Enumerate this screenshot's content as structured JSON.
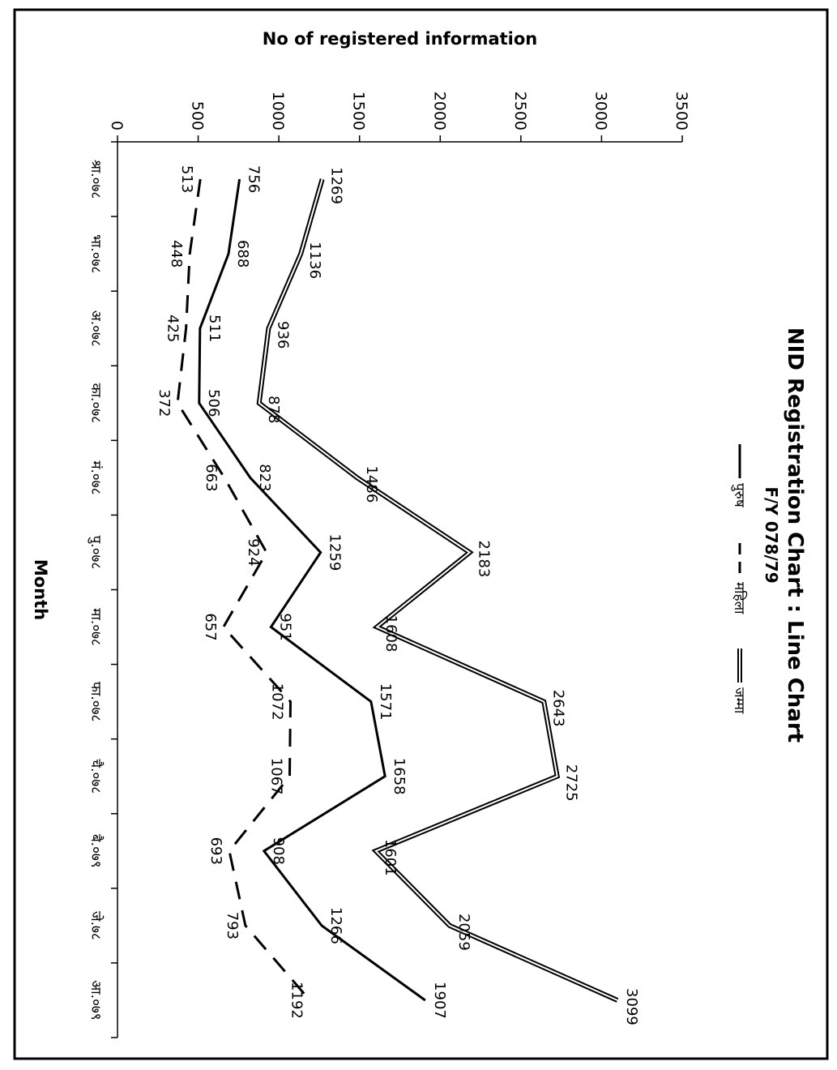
{
  "chart_data": {
    "type": "line",
    "orientation": "rotated-90-clockwise",
    "title": "NID Registration Chart : Line Chart",
    "subtitle": "F/Y 078/79",
    "xlabel": "Month",
    "ylabel": "No of registered information",
    "ylim": [
      0,
      3500
    ],
    "y_ticks": [
      "0",
      "500",
      "1000",
      "1500",
      "2000",
      "2500",
      "3000",
      "3500"
    ],
    "grid": false,
    "legend_position": "top",
    "categories": [
      "श्रा.०७८",
      "भा.०७८",
      "अ.०७८",
      "का.०७८",
      "मं.०७८",
      "पु.०७८",
      "मा.०७८",
      "फा.०७८",
      "चै.०७८",
      "बै.०७९",
      "जे.७८",
      "आ.०७९"
    ],
    "series": [
      {
        "name": "पुरुष",
        "style": "solid",
        "color": "#000000",
        "values": [
          756,
          688,
          511,
          506,
          823,
          1259,
          951,
          1571,
          1658,
          908,
          1266,
          1907
        ]
      },
      {
        "name": "महिला",
        "style": "dashed",
        "color": "#000000",
        "values": [
          513,
          448,
          425,
          372,
          663,
          924,
          657,
          1072,
          1067,
          693,
          793,
          1192
        ]
      },
      {
        "name": "जम्मा",
        "style": "double",
        "color": "#000000",
        "values": [
          1269,
          1136,
          936,
          878,
          1486,
          2183,
          1608,
          2643,
          2725,
          1601,
          2059,
          3099
        ]
      }
    ]
  }
}
